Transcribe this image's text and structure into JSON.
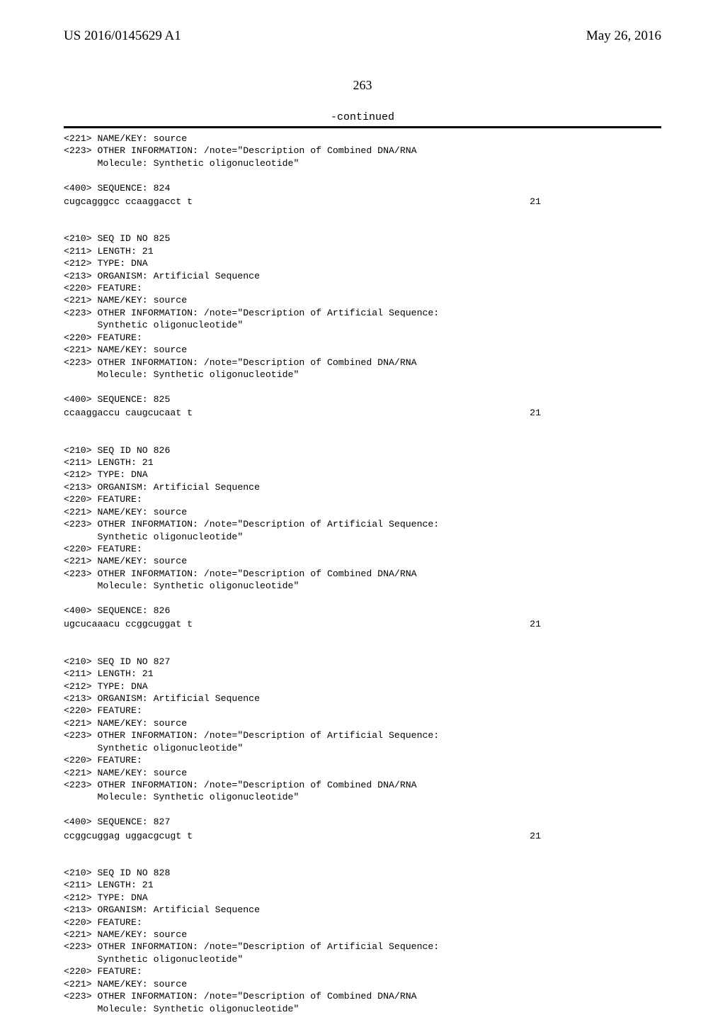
{
  "header": {
    "left": "US 2016/0145629 A1",
    "right": "May 26, 2016"
  },
  "pagenum": "263",
  "continued": "-continued",
  "blocks": [
    {
      "lines": [
        "<221> NAME/KEY: source",
        "<223> OTHER INFORMATION: /note=\"Description of Combined DNA/RNA",
        "      Molecule: Synthetic oligonucleotide\"",
        "",
        "<400> SEQUENCE: 824",
        ""
      ],
      "seq": "cugcagggcc ccaaggacct t",
      "seqlen": "21"
    },
    {
      "lines": [
        "",
        "",
        "<210> SEQ ID NO 825",
        "<211> LENGTH: 21",
        "<212> TYPE: DNA",
        "<213> ORGANISM: Artificial Sequence",
        "<220> FEATURE:",
        "<221> NAME/KEY: source",
        "<223> OTHER INFORMATION: /note=\"Description of Artificial Sequence:",
        "      Synthetic oligonucleotide\"",
        "<220> FEATURE:",
        "<221> NAME/KEY: source",
        "<223> OTHER INFORMATION: /note=\"Description of Combined DNA/RNA",
        "      Molecule: Synthetic oligonucleotide\"",
        "",
        "<400> SEQUENCE: 825",
        ""
      ],
      "seq": "ccaaggaccu caugcucaat t",
      "seqlen": "21"
    },
    {
      "lines": [
        "",
        "",
        "<210> SEQ ID NO 826",
        "<211> LENGTH: 21",
        "<212> TYPE: DNA",
        "<213> ORGANISM: Artificial Sequence",
        "<220> FEATURE:",
        "<221> NAME/KEY: source",
        "<223> OTHER INFORMATION: /note=\"Description of Artificial Sequence:",
        "      Synthetic oligonucleotide\"",
        "<220> FEATURE:",
        "<221> NAME/KEY: source",
        "<223> OTHER INFORMATION: /note=\"Description of Combined DNA/RNA",
        "      Molecule: Synthetic oligonucleotide\"",
        "",
        "<400> SEQUENCE: 826",
        ""
      ],
      "seq": "ugcucaaacu ccggcuggat t",
      "seqlen": "21"
    },
    {
      "lines": [
        "",
        "",
        "<210> SEQ ID NO 827",
        "<211> LENGTH: 21",
        "<212> TYPE: DNA",
        "<213> ORGANISM: Artificial Sequence",
        "<220> FEATURE:",
        "<221> NAME/KEY: source",
        "<223> OTHER INFORMATION: /note=\"Description of Artificial Sequence:",
        "      Synthetic oligonucleotide\"",
        "<220> FEATURE:",
        "<221> NAME/KEY: source",
        "<223> OTHER INFORMATION: /note=\"Description of Combined DNA/RNA",
        "      Molecule: Synthetic oligonucleotide\"",
        "",
        "<400> SEQUENCE: 827",
        ""
      ],
      "seq": "ccggcuggag uggacgcugt t",
      "seqlen": "21"
    },
    {
      "lines": [
        "",
        "",
        "<210> SEQ ID NO 828",
        "<211> LENGTH: 21",
        "<212> TYPE: DNA",
        "<213> ORGANISM: Artificial Sequence",
        "<220> FEATURE:",
        "<221> NAME/KEY: source",
        "<223> OTHER INFORMATION: /note=\"Description of Artificial Sequence:",
        "      Synthetic oligonucleotide\"",
        "<220> FEATURE:",
        "<221> NAME/KEY: source",
        "<223> OTHER INFORMATION: /note=\"Description of Combined DNA/RNA",
        "      Molecule: Synthetic oligonucleotide\""
      ]
    }
  ]
}
